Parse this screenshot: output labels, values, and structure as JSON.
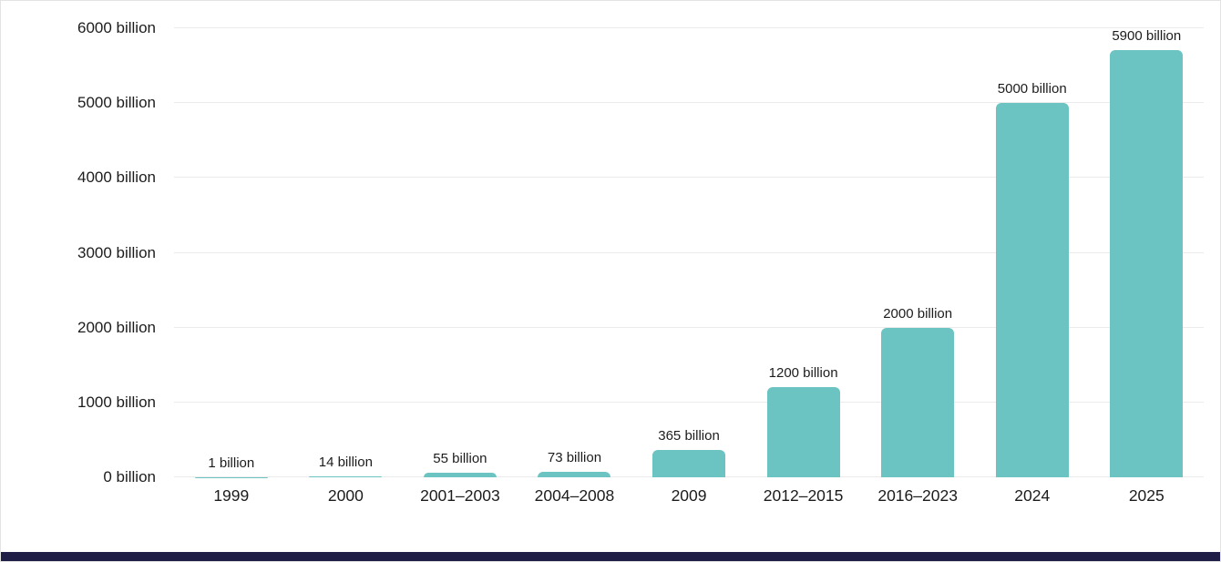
{
  "chart_data": {
    "type": "bar",
    "title": "",
    "subtitle": "",
    "xlabel": "",
    "ylabel": "",
    "categories": [
      "1999",
      "2000",
      "2001–2003",
      "2004–2008",
      "2009",
      "2012–2015",
      "2016–2023",
      "2024",
      "2025"
    ],
    "values": [
      1,
      14,
      55,
      73,
      365,
      1200,
      2000,
      5000,
      5900
    ],
    "bar_labels": [
      "1 billion",
      "14 billion",
      "55 billion",
      "73 billion",
      "365 billion",
      "1200 billion",
      "2000 billion",
      "5000 billion",
      "5900 billion"
    ],
    "ylim": [
      0,
      6000
    ],
    "yticks": [
      0,
      1000,
      2000,
      3000,
      4000,
      5000,
      6000
    ],
    "ytick_labels": [
      "0 billion",
      "1000 billion",
      "2000 billion",
      "3000 billion",
      "4000 billion",
      "5000 billion",
      "6000 billion"
    ],
    "grid": true,
    "legend": false
  },
  "colors": {
    "bar": "#6bc4c1",
    "grid": "#ebebeb",
    "text": "#1c1c1c",
    "background": "#ffffff",
    "bottom_accent": "#1e1e46"
  }
}
